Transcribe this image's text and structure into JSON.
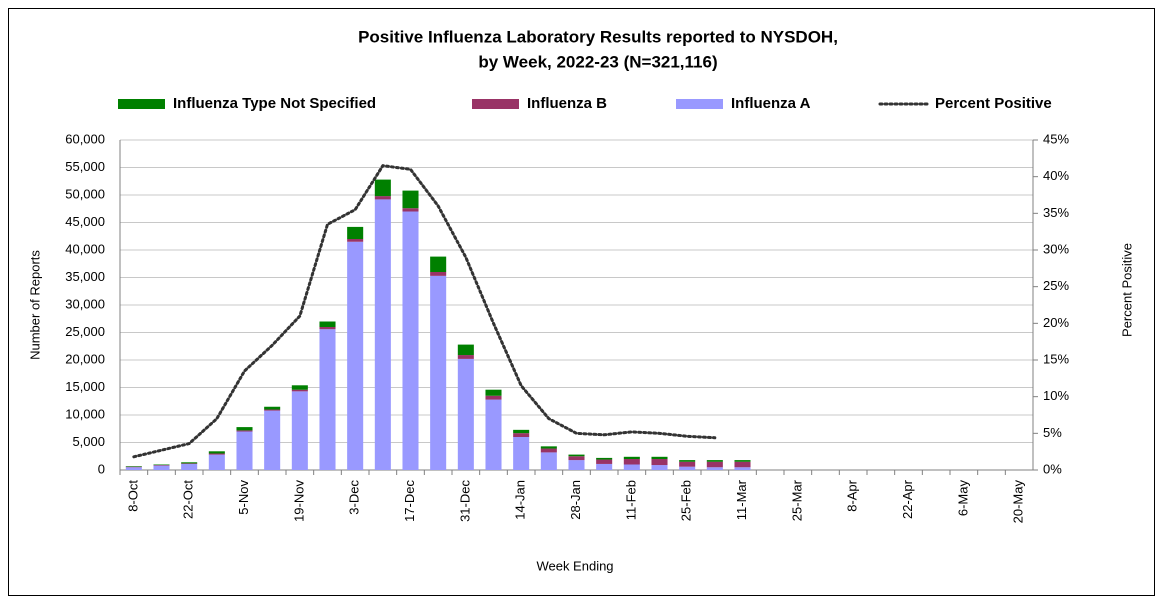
{
  "chart_data": {
    "type": "bar",
    "title": [
      "Positive Influenza Laboratory Results reported to NYSDOH,",
      "by Week, 2022-23 (N=321,116)"
    ],
    "x_label": "Week Ending",
    "y_label": "Number of Reports",
    "y2_label": "Percent Positive",
    "categories": [
      "8-Oct",
      null,
      "22-Oct",
      null,
      "5-Nov",
      null,
      "19-Nov",
      null,
      "3-Dec",
      null,
      "17-Dec",
      null,
      "31-Dec",
      null,
      "14-Jan",
      null,
      "28-Jan",
      null,
      "11-Feb",
      null,
      "25-Feb",
      null,
      "11-Mar",
      null,
      "25-Mar",
      null,
      "8-Apr",
      null,
      "22-Apr",
      null,
      "6-May",
      null,
      "20-May"
    ],
    "series": [
      {
        "name": "Influenza A",
        "color": "#9999ff",
        "values": [
          500,
          800,
          1100,
          2800,
          7000,
          10800,
          14300,
          25600,
          41500,
          49200,
          47000,
          35300,
          20200,
          12800,
          6000,
          3200,
          1800,
          1100,
          1000,
          900,
          600,
          500,
          500,
          null,
          null,
          null,
          null,
          null,
          null,
          null,
          null,
          null,
          null
        ]
      },
      {
        "name": "Influenza B",
        "color": "#993366",
        "values": [
          100,
          100,
          100,
          200,
          200,
          200,
          300,
          400,
          500,
          600,
          600,
          700,
          700,
          700,
          700,
          700,
          700,
          800,
          1000,
          1100,
          900,
          1000,
          1000,
          null,
          null,
          null,
          null,
          null,
          null,
          null,
          null,
          null,
          null
        ]
      },
      {
        "name": "Influenza Type Not Specified",
        "color": "#008000",
        "values": [
          100,
          100,
          200,
          400,
          600,
          500,
          800,
          1000,
          2200,
          3000,
          3200,
          2800,
          1900,
          1100,
          600,
          400,
          300,
          300,
          400,
          400,
          300,
          300,
          300,
          null,
          null,
          null,
          null,
          null,
          null,
          null,
          null,
          null,
          null
        ]
      },
      {
        "name": "Percent Positive",
        "color": "#333333",
        "type": "line",
        "axis": "y2",
        "values": [
          1.8,
          2.7,
          3.6,
          7,
          13.5,
          17,
          21,
          33.5,
          35.5,
          41.5,
          41,
          36,
          29,
          20,
          11.5,
          7,
          5,
          4.8,
          5.2,
          5,
          4.6,
          4.4,
          null,
          null,
          null,
          null,
          null,
          null,
          null,
          null,
          null,
          null,
          null
        ]
      }
    ],
    "ylim": [
      0,
      60000
    ],
    "yticks": [
      0,
      {
        "value": 5000,
        "label": "5,000"
      },
      {
        "value": 10000,
        "label": "10,000"
      },
      {
        "value": 15000,
        "label": "15,000"
      },
      {
        "value": 20000,
        "label": "20,000"
      },
      {
        "value": 25000,
        "label": "25,000"
      },
      {
        "value": 30000,
        "label": "30,000"
      },
      {
        "value": 35000,
        "label": "35,000"
      },
      {
        "value": 40000,
        "label": "40,000"
      },
      {
        "value": 45000,
        "label": "45,000"
      },
      {
        "value": 50000,
        "label": "50,000"
      },
      {
        "value": 55000,
        "label": "55,000"
      },
      {
        "value": 60000,
        "label": "60,000"
      }
    ],
    "y2lim": [
      0,
      45
    ],
    "y2ticks": [
      {
        "value": 0,
        "label": "0%"
      },
      {
        "value": 5,
        "label": "5%"
      },
      {
        "value": 10,
        "label": "10%"
      },
      {
        "value": 15,
        "label": "15%"
      },
      {
        "value": 20,
        "label": "20%"
      },
      {
        "value": 25,
        "label": "25%"
      },
      {
        "value": 30,
        "label": "30%"
      },
      {
        "value": 35,
        "label": "35%"
      },
      {
        "value": 40,
        "label": "40%"
      },
      {
        "value": 45,
        "label": "45%"
      }
    ],
    "grid": true,
    "legend": "top"
  }
}
